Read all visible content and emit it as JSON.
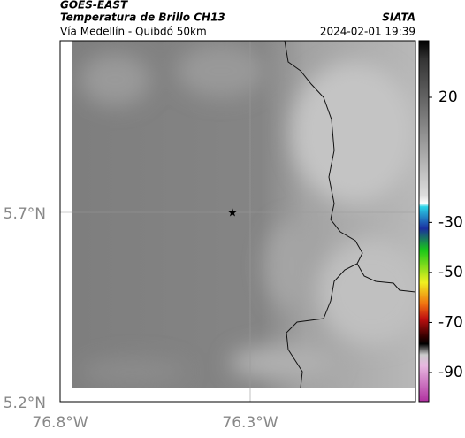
{
  "header": {
    "source": "GOES-EAST",
    "title": "Temperatura de Brillo CH13",
    "subtitle": "Vía Medellín - Quibdó 50km",
    "agency": "SIATA",
    "timestamp": "2024-02-01 19:39"
  },
  "map": {
    "lat_labels": [
      "5.7°N",
      "5.2°N"
    ],
    "lon_labels": [
      "76.8°W",
      "76.3°W"
    ]
  },
  "colorbar": {
    "ticks": [
      20,
      -30,
      -50,
      -70,
      -90
    ]
  }
}
